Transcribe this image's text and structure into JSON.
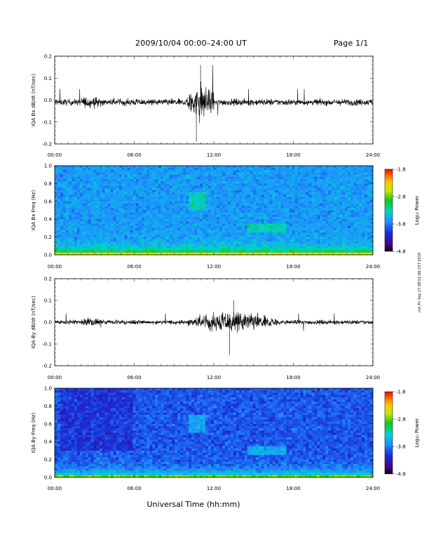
{
  "header": {
    "title": "2009/10/04  00:00–24:00 UT",
    "page": "Page 1/1"
  },
  "side_stamp": "mrt Fri Sep 27 08:51:06 CST 2019",
  "xlabel": "Universal Time (hh:mm)",
  "colorbar": {
    "label": "Log₁₀ Power",
    "ticks": [
      "-1.8",
      "-2.8",
      "-3.8",
      "-4.8"
    ],
    "range": [
      -4.8,
      -1.8
    ],
    "scale": "rainbow"
  },
  "chart_data": [
    {
      "type": "line",
      "ylabel": "IQA Bx dB/dt (nT/sec)",
      "xticks": [
        "00:00",
        "06:00",
        "12:00",
        "18:00",
        "24:00"
      ],
      "yticks": [
        "0.2",
        "0.1",
        "0.0",
        "-0.1",
        "-0.2"
      ],
      "xlim": [
        0,
        24
      ],
      "ylim": [
        -0.2,
        0.2
      ],
      "series": [
        {
          "values_summary": {
            "baseline": -0.01,
            "quiet_amplitude": 0.015,
            "max": 0.16,
            "min": -0.19,
            "active_interval_hours": [
              10,
              12
            ]
          }
        }
      ]
    },
    {
      "type": "heatmap",
      "ylabel": "IQA Bx Freq (Hz)",
      "xticks": [
        "00:00",
        "06:00",
        "12:00",
        "18:00",
        "24:00"
      ],
      "yticks": [
        "1.0",
        "0.8",
        "0.6",
        "0.4",
        "0.2",
        "0.0"
      ],
      "xlim": [
        0,
        24
      ],
      "ylim": [
        0,
        1.0
      ]
    },
    {
      "type": "line",
      "ylabel": "IQA By dB/dt (nT/sec)",
      "xticks": [
        "00:00",
        "06:00",
        "12:00",
        "18:00",
        "24:00"
      ],
      "yticks": [
        "0.2",
        "0.1",
        "0.0",
        "-0.1",
        "-0.2"
      ],
      "xlim": [
        0,
        24
      ],
      "ylim": [
        -0.2,
        0.2
      ],
      "series": [
        {
          "values_summary": {
            "baseline": 0.0,
            "quiet_amplitude": 0.01,
            "max": 0.1,
            "min": -0.15,
            "active_interval_hours": [
              10,
              17
            ]
          }
        }
      ]
    },
    {
      "type": "heatmap",
      "ylabel": "IQA By Freq (Hz)",
      "xticks": [
        "00:00",
        "06:00",
        "12:00",
        "18:00",
        "24:00"
      ],
      "yticks": [
        "1.0",
        "0.8",
        "0.6",
        "0.4",
        "0.2",
        "0.0"
      ],
      "xlim": [
        0,
        24
      ],
      "ylim": [
        0,
        1.0
      ]
    }
  ]
}
